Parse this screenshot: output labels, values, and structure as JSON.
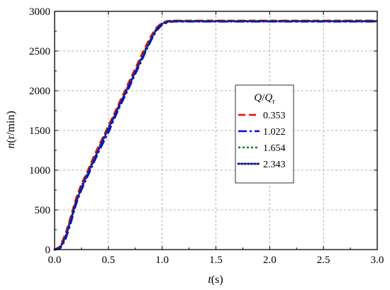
{
  "chart_data": {
    "type": "line",
    "xlabel": {
      "var": "t",
      "unit": "(s)"
    },
    "ylabel": {
      "var": "n",
      "unit": "(r/min)"
    },
    "xlim": [
      0,
      3.0
    ],
    "ylim": [
      0,
      3000
    ],
    "xticks": [
      0.0,
      0.5,
      1.0,
      1.5,
      2.0,
      2.5,
      3.0
    ],
    "xtick_labels": [
      "0.0",
      "0.5",
      "1.0",
      "1.5",
      "2.0",
      "2.5",
      "3.0"
    ],
    "yticks": [
      0,
      500,
      1000,
      1500,
      2000,
      2500,
      3000
    ],
    "ytick_labels": [
      "0",
      "500",
      "1000",
      "1500",
      "2000",
      "2500",
      "3000"
    ],
    "grid": true,
    "legend": {
      "title_main": "Q",
      "title_sep": "/",
      "title_denom": "Q",
      "title_sub": "r",
      "placement": "center-right"
    },
    "series": [
      {
        "name": "0.353",
        "color": "#ff0000",
        "dash": "dashed",
        "x": [
          0,
          0.05,
          0.1,
          0.15,
          0.2,
          0.25,
          0.3,
          0.35,
          0.4,
          0.45,
          0.5,
          0.55,
          0.6,
          0.65,
          0.7,
          0.75,
          0.8,
          0.85,
          0.9,
          0.95,
          1.0,
          1.05,
          1.1,
          1.5,
          2.0,
          2.5,
          3.0
        ],
        "y": [
          0,
          40,
          200,
          420,
          650,
          830,
          970,
          1130,
          1280,
          1420,
          1560,
          1700,
          1850,
          1990,
          2140,
          2280,
          2430,
          2570,
          2700,
          2800,
          2860,
          2880,
          2885,
          2885,
          2885,
          2885,
          2885
        ]
      },
      {
        "name": "1.022",
        "color": "#0000ff",
        "dash": "dashdot",
        "x": [
          0,
          0.05,
          0.1,
          0.15,
          0.2,
          0.25,
          0.3,
          0.35,
          0.4,
          0.45,
          0.5,
          0.55,
          0.6,
          0.65,
          0.7,
          0.75,
          0.8,
          0.85,
          0.9,
          0.95,
          1.0,
          1.05,
          1.1,
          1.5,
          2.0,
          2.5,
          3.0
        ],
        "y": [
          0,
          10,
          120,
          330,
          570,
          750,
          900,
          1050,
          1200,
          1340,
          1470,
          1630,
          1780,
          1920,
          2060,
          2210,
          2350,
          2500,
          2640,
          2760,
          2830,
          2860,
          2870,
          2870,
          2870,
          2870,
          2870
        ]
      },
      {
        "name": "1.654",
        "color": "#008000",
        "dash": "dotted",
        "x": [
          0,
          0.05,
          0.1,
          0.15,
          0.2,
          0.25,
          0.3,
          0.35,
          0.4,
          0.45,
          0.5,
          0.55,
          0.6,
          0.65,
          0.7,
          0.75,
          0.8,
          0.85,
          0.9,
          0.95,
          1.0,
          1.05,
          1.1,
          1.5,
          2.0,
          2.5,
          3.0
        ],
        "y": [
          0,
          30,
          170,
          400,
          620,
          800,
          950,
          1100,
          1250,
          1400,
          1540,
          1680,
          1820,
          1960,
          2110,
          2250,
          2400,
          2540,
          2680,
          2790,
          2850,
          2875,
          2880,
          2880,
          2880,
          2880,
          2880
        ]
      },
      {
        "name": "2.343",
        "color": "#1a1a8c",
        "dash": "densedot",
        "x": [
          0,
          0.05,
          0.1,
          0.15,
          0.2,
          0.25,
          0.3,
          0.35,
          0.4,
          0.45,
          0.5,
          0.55,
          0.6,
          0.65,
          0.7,
          0.75,
          0.8,
          0.85,
          0.9,
          0.95,
          1.0,
          1.05,
          1.1,
          1.5,
          2.0,
          2.5,
          3.0
        ],
        "y": [
          0,
          20,
          150,
          370,
          600,
          780,
          930,
          1080,
          1230,
          1380,
          1520,
          1660,
          1810,
          1950,
          2090,
          2240,
          2380,
          2520,
          2660,
          2780,
          2845,
          2870,
          2875,
          2875,
          2875,
          2875,
          2875
        ]
      }
    ]
  }
}
